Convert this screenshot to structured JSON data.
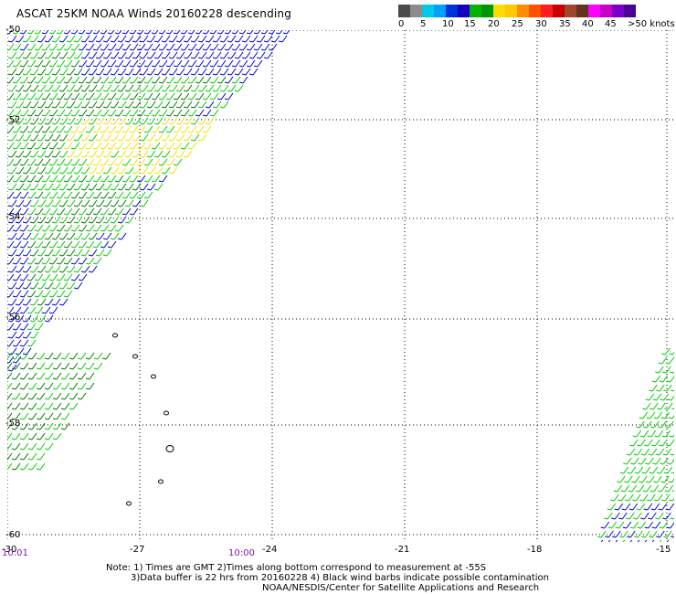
{
  "title": "ASCAT 25KM NOAA Winds 20160228 descending",
  "legend": {
    "colors": [
      "#4b4b4b",
      "#8c8c8c",
      "#00c8e6",
      "#00a0ff",
      "#0032dc",
      "#1400be",
      "#00b400",
      "#009600",
      "#ffdc00",
      "#ffc800",
      "#ff8c00",
      "#ff5000",
      "#ff1e1e",
      "#c80000",
      "#a0462d",
      "#64321e",
      "#ff00ff",
      "#c800c8",
      "#7800c8",
      "#4b0096"
    ],
    "labels": [
      "0",
      "5",
      "10",
      "15",
      "20",
      "25",
      "30",
      "35",
      "40",
      "45",
      ">50 knots"
    ]
  },
  "map": {
    "lat_labels": [
      "-50",
      "-52",
      "-54",
      "-56",
      "-58",
      "-60"
    ],
    "lon_labels": [
      "-30",
      "-27",
      "-24",
      "-21",
      "-18",
      "-15"
    ],
    "grid": true,
    "time_labels": [
      "10:01",
      "10:00"
    ],
    "wind_colors": {
      "blue": "#0000d8",
      "green": "#00cc00",
      "dark_green": "#007a00",
      "yellow": "#f0e000"
    }
  },
  "notes": [
    "Note: 1) Times are GMT 2)Times along bottom correspond to measurement at -55S",
    "3)Data buffer is 22 hrs from 20160228 4) Black wind barbs indicate possible contamination",
    "NOAA/NESDIS/Center for Satellite Applications and Research"
  ]
}
